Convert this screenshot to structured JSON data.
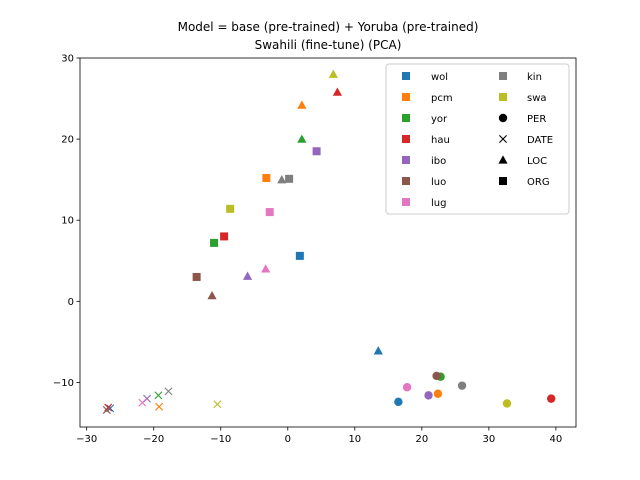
{
  "chart_data": {
    "type": "scatter",
    "title_lines": [
      "Model = base (pre-trained) + Yoruba (pre-trained)",
      "Swahili (fine-tune) (PCA)"
    ],
    "xlabel": "",
    "ylabel": "",
    "xlim": [
      -31,
      43
    ],
    "ylim": [
      -15.5,
      30
    ],
    "xticks": [
      -30,
      -20,
      -10,
      0,
      10,
      20,
      30,
      40
    ],
    "yticks": [
      -10,
      0,
      10,
      20,
      30
    ],
    "grid": false,
    "legend_position": "top-right",
    "languages": [
      {
        "name": "wol",
        "color": "#1f77b4"
      },
      {
        "name": "pcm",
        "color": "#ff7f0e"
      },
      {
        "name": "yor",
        "color": "#2ca02c"
      },
      {
        "name": "hau",
        "color": "#d62728"
      },
      {
        "name": "ibo",
        "color": "#9467bd"
      },
      {
        "name": "luo",
        "color": "#8c564b"
      },
      {
        "name": "lug",
        "color": "#e377c2"
      },
      {
        "name": "kin",
        "color": "#7f7f7f"
      },
      {
        "name": "swa",
        "color": "#bcbd22"
      }
    ],
    "entity_types": [
      {
        "name": "PER",
        "marker": "circle"
      },
      {
        "name": "DATE",
        "marker": "x"
      },
      {
        "name": "LOC",
        "marker": "triangle"
      },
      {
        "name": "ORG",
        "marker": "square"
      }
    ],
    "points": [
      {
        "lang": "wol",
        "type": "PER",
        "x": 16.5,
        "y": -12.4
      },
      {
        "lang": "wol",
        "type": "DATE",
        "x": -26.5,
        "y": -13.2
      },
      {
        "lang": "wol",
        "type": "LOC",
        "x": 13.5,
        "y": -6.1
      },
      {
        "lang": "wol",
        "type": "ORG",
        "x": 1.8,
        "y": 5.6
      },
      {
        "lang": "pcm",
        "type": "PER",
        "x": 22.4,
        "y": -11.4
      },
      {
        "lang": "pcm",
        "type": "DATE",
        "x": -19.2,
        "y": -13.0
      },
      {
        "lang": "pcm",
        "type": "LOC",
        "x": 2.1,
        "y": 24.2
      },
      {
        "lang": "pcm",
        "type": "ORG",
        "x": -3.2,
        "y": 15.2
      },
      {
        "lang": "yor",
        "type": "PER",
        "x": 22.8,
        "y": -9.3
      },
      {
        "lang": "yor",
        "type": "DATE",
        "x": -19.3,
        "y": -11.6
      },
      {
        "lang": "yor",
        "type": "LOC",
        "x": 2.1,
        "y": 20.0
      },
      {
        "lang": "yor",
        "type": "ORG",
        "x": -11.0,
        "y": 7.2
      },
      {
        "lang": "hau",
        "type": "PER",
        "x": 39.3,
        "y": -12.0
      },
      {
        "lang": "hau",
        "type": "DATE",
        "x": -26.8,
        "y": -13.1
      },
      {
        "lang": "hau",
        "type": "LOC",
        "x": 7.4,
        "y": 25.8
      },
      {
        "lang": "hau",
        "type": "ORG",
        "x": -9.5,
        "y": 8.0
      },
      {
        "lang": "ibo",
        "type": "PER",
        "x": 21.0,
        "y": -11.6
      },
      {
        "lang": "ibo",
        "type": "DATE",
        "x": -21.0,
        "y": -12.0
      },
      {
        "lang": "ibo",
        "type": "LOC",
        "x": -6.0,
        "y": 3.1
      },
      {
        "lang": "ibo",
        "type": "ORG",
        "x": 4.3,
        "y": 18.5
      },
      {
        "lang": "luo",
        "type": "PER",
        "x": 22.2,
        "y": -9.2
      },
      {
        "lang": "luo",
        "type": "DATE",
        "x": -27.0,
        "y": -13.4
      },
      {
        "lang": "luo",
        "type": "LOC",
        "x": -11.3,
        "y": 0.7
      },
      {
        "lang": "luo",
        "type": "ORG",
        "x": -13.6,
        "y": 3.0
      },
      {
        "lang": "lug",
        "type": "PER",
        "x": 17.8,
        "y": -10.6
      },
      {
        "lang": "lug",
        "type": "DATE",
        "x": -21.7,
        "y": -12.5
      },
      {
        "lang": "lug",
        "type": "LOC",
        "x": -3.3,
        "y": 4.0
      },
      {
        "lang": "lug",
        "type": "ORG",
        "x": -2.7,
        "y": 11.0
      },
      {
        "lang": "kin",
        "type": "PER",
        "x": 26.0,
        "y": -10.4
      },
      {
        "lang": "kin",
        "type": "DATE",
        "x": -17.8,
        "y": -11.1
      },
      {
        "lang": "kin",
        "type": "LOC",
        "x": -0.9,
        "y": 15.0
      },
      {
        "lang": "kin",
        "type": "ORG",
        "x": 0.2,
        "y": 15.1
      },
      {
        "lang": "swa",
        "type": "PER",
        "x": 32.7,
        "y": -12.6
      },
      {
        "lang": "swa",
        "type": "DATE",
        "x": -10.5,
        "y": -12.7
      },
      {
        "lang": "swa",
        "type": "LOC",
        "x": 6.8,
        "y": 28.0
      },
      {
        "lang": "swa",
        "type": "ORG",
        "x": -8.6,
        "y": 11.4
      }
    ]
  }
}
